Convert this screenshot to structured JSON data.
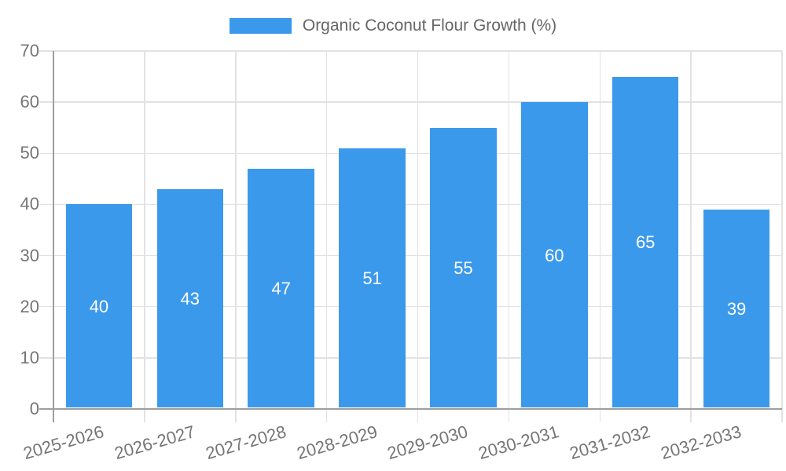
{
  "chart_data": {
    "type": "bar",
    "legend_label": "Organic Coconut Flour Growth (%)",
    "legend_position": "top",
    "categories": [
      "2025-2026",
      "2026-2027",
      "2027-2028",
      "2028-2029",
      "2029-2030",
      "2030-2031",
      "2031-2032",
      "2032-2033"
    ],
    "values": [
      40,
      43,
      47,
      51,
      55,
      60,
      65,
      39
    ],
    "value_labels": [
      "40",
      "43",
      "47",
      "51",
      "55",
      "60",
      "65",
      "39"
    ],
    "xlabel": "",
    "ylabel": "",
    "ylim": [
      0,
      70
    ],
    "yticks": [
      0,
      10,
      20,
      30,
      40,
      50,
      60,
      70
    ],
    "grid": true,
    "x_label_rotation_deg": -16,
    "colors": {
      "bar": "#3B99EC",
      "bar_value_text": "#ffffff",
      "grid": "#e2e2e2",
      "axis": "#9e9e9e",
      "tick_text": "#757575",
      "legend_text": "#666666",
      "background": "#ffffff"
    }
  }
}
